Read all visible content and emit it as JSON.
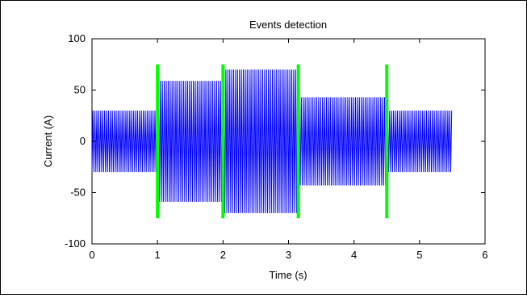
{
  "chart_data": {
    "type": "line",
    "title": "Events detection",
    "xlabel": "Time (s)",
    "ylabel": "Current (A)",
    "xlim": [
      0,
      6
    ],
    "ylim": [
      -100,
      100
    ],
    "xticks": [
      "0",
      "1",
      "2",
      "3",
      "4",
      "5",
      "6"
    ],
    "yticks": [
      "100",
      "50",
      "0",
      "-50",
      "-100"
    ],
    "grid": false,
    "series": [
      {
        "color": "#0000ff",
        "kind": "oscillating-current-envelope",
        "segments": [
          {
            "t_start": 0.0,
            "t_end": 1.0,
            "amplitude": 30
          },
          {
            "t_start": 1.0,
            "t_end": 2.0,
            "amplitude": 59
          },
          {
            "t_start": 2.0,
            "t_end": 3.15,
            "amplitude": 70
          },
          {
            "t_start": 3.15,
            "t_end": 4.5,
            "amplitude": 43
          },
          {
            "t_start": 4.5,
            "t_end": 5.5,
            "amplitude": 30
          }
        ]
      }
    ],
    "events": {
      "color": "#00ff00",
      "times": [
        1.0,
        2.0,
        3.15,
        4.5
      ],
      "y_range": [
        -75,
        75
      ]
    }
  }
}
